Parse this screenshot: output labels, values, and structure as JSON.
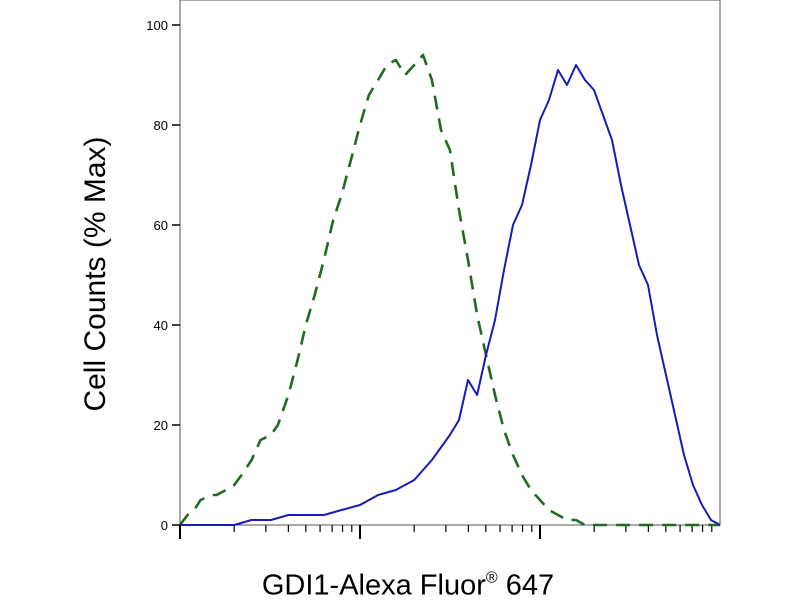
{
  "chart_data": {
    "type": "line",
    "title": "",
    "ylabel": "Cell Counts (% Max)",
    "xlabel": {
      "text": "GDI1-Alexa Fluor",
      "superscript": "®",
      "suffix": " 647"
    },
    "ylim": [
      0,
      100
    ],
    "yticks": [
      "0",
      "20",
      "40",
      "60",
      "80",
      "100"
    ],
    "xscale": "log",
    "xlim": [
      10,
      10000
    ],
    "grid": false,
    "legend": "none",
    "series": [
      {
        "style": "dashed",
        "color": "#1f6b1f",
        "x": [
          10,
          11,
          12,
          13,
          15,
          16,
          18,
          20,
          22,
          25,
          28,
          32,
          35,
          40,
          45,
          50,
          56,
          63,
          71,
          79,
          89,
          100,
          112,
          126,
          141,
          158,
          178,
          200,
          224,
          251,
          282,
          316,
          355,
          398,
          447,
          501,
          562,
          631,
          708,
          794,
          891,
          1000,
          1122,
          1259,
          1413,
          1585,
          1778,
          1995,
          2239,
          2512,
          2818,
          3162,
          3548,
          3981,
          4467,
          5012,
          5623,
          6310,
          7079,
          7943,
          8913,
          10000
        ],
        "y": [
          0,
          2,
          3,
          5,
          6,
          6,
          7,
          8,
          10,
          13,
          17,
          18,
          20,
          26,
          33,
          40,
          46,
          53,
          61,
          66,
          73,
          80,
          86,
          89,
          92,
          93,
          90,
          92,
          94,
          89,
          79,
          75,
          63,
          53,
          42,
          34,
          26,
          19,
          14,
          10,
          7,
          5,
          3,
          2,
          1,
          1,
          0,
          0,
          0,
          0,
          0,
          0,
          0,
          0,
          0,
          0,
          0,
          0,
          0,
          0,
          0,
          0
        ]
      },
      {
        "style": "solid",
        "color": "#1a1ab4",
        "x": [
          10,
          13,
          16,
          20,
          25,
          32,
          40,
          50,
          63,
          79,
          100,
          126,
          158,
          200,
          251,
          316,
          355,
          398,
          447,
          501,
          562,
          631,
          708,
          794,
          891,
          1000,
          1122,
          1259,
          1413,
          1585,
          1778,
          1995,
          2239,
          2512,
          2818,
          3162,
          3548,
          3981,
          4467,
          5012,
          5623,
          6310,
          7079,
          7943,
          8913,
          10000
        ],
        "y": [
          0,
          0,
          0,
          0,
          1,
          1,
          2,
          2,
          2,
          3,
          4,
          6,
          7,
          9,
          13,
          18,
          21,
          29,
          26,
          34,
          41,
          51,
          60,
          64,
          72,
          81,
          85,
          91,
          88,
          92,
          89,
          87,
          82,
          77,
          68,
          60,
          52,
          48,
          38,
          30,
          22,
          14,
          8,
          4,
          1,
          0
        ]
      }
    ]
  }
}
